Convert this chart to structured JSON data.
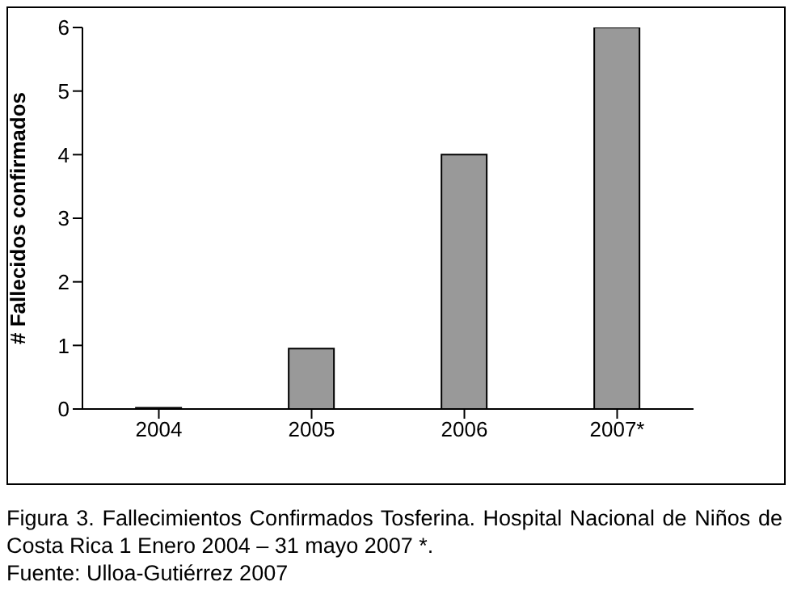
{
  "chart_data": {
    "type": "bar",
    "categories": [
      "2004",
      "2005",
      "2006",
      "2007*"
    ],
    "values": [
      0.02,
      0.95,
      4,
      6
    ],
    "color": "#999999",
    "ylabel": "# Fallecidos confirmados",
    "ylim": [
      0,
      6
    ],
    "yticks": [
      0,
      1,
      2,
      3,
      4,
      5,
      6
    ],
    "grid": false,
    "legend": false,
    "annotations": [
      "Figura 3. Fallecimientos Confirmados Tosferina. Hospital Nacional de Niños de Costa Rica 1 Enero 2004 – 31 mayo 2007 *.",
      "Fuente: Ulloa-Gutiérrez 2007"
    ]
  }
}
